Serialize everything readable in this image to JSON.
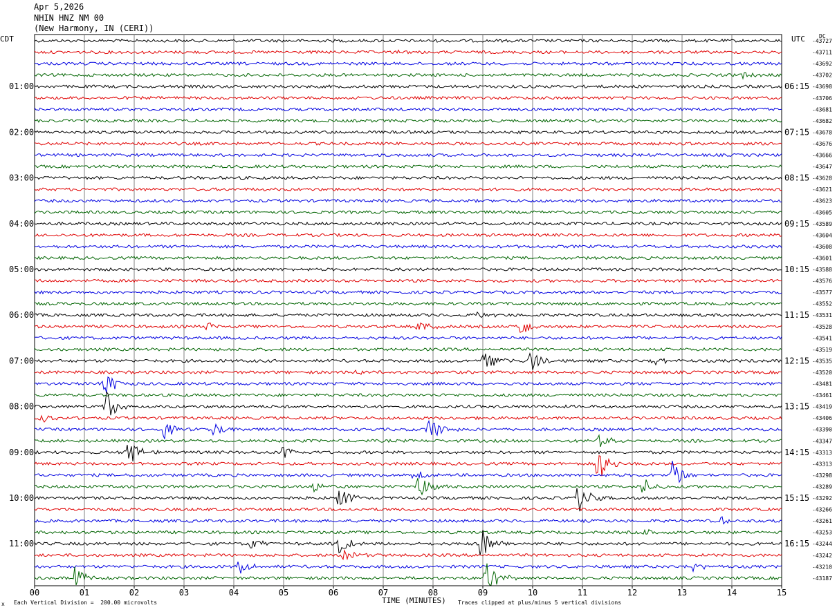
{
  "header": {
    "date": "Apr 5,2026",
    "station": "NHIN HNZ NM 00",
    "location": "(New Harmony, IN (CERI))"
  },
  "labels": {
    "left_tz": "CDT",
    "right_tz": "UTC",
    "dc": "DC",
    "xaxis_title": "TIME (MINUTES)",
    "scale_note": "Each Vertical Division =  200.00 microvolts",
    "clip_note": "Traces clipped at plus/minus 5 vertical divisions",
    "corner_mark": "x"
  },
  "colors": {
    "trace_cycle": [
      "#000000",
      "#e00000",
      "#0000e0",
      "#006400"
    ],
    "grid": "#808080"
  },
  "chart_data": {
    "type": "line",
    "title": "NHIN HNZ NM 00",
    "xlabel": "TIME (MINUTES)",
    "xlim": [
      0,
      15
    ],
    "x_ticks": [
      "00",
      "01",
      "02",
      "03",
      "04",
      "05",
      "06",
      "07",
      "08",
      "09",
      "10",
      "11",
      "12",
      "13",
      "14",
      "15"
    ],
    "left_hour_labels": [
      "01:00",
      "02:00",
      "03:00",
      "04:00",
      "05:00",
      "06:00",
      "07:00",
      "08:00",
      "09:00",
      "10:00",
      "11:00"
    ],
    "right_hour_labels": [
      "06:15",
      "07:15",
      "08:15",
      "09:15",
      "10:15",
      "11:15",
      "12:15",
      "13:15",
      "14:15",
      "15:15",
      "16:15"
    ],
    "dc_offsets": [
      "-43727",
      "-43711",
      "-43692",
      "-43702",
      "-43698",
      "-43706",
      "-43681",
      "-43682",
      "-43678",
      "-43676",
      "-43666",
      "-43647",
      "-43628",
      "-43621",
      "-43623",
      "-43605",
      "-43589",
      "-43604",
      "-43608",
      "-43601",
      "-43588",
      "-43576",
      "-43577",
      "-43552",
      "-43531",
      "-43528",
      "-43541",
      "-43519",
      "-43535",
      "-43520",
      "-43481",
      "-43461",
      "-43419",
      "-43406",
      "-43390",
      "-43347",
      "-43313",
      "-43313",
      "-43298",
      "-43289",
      "-43292",
      "-43266",
      "-43261",
      "-43253",
      "-43244",
      "-43242",
      "-43210",
      "-43187"
    ],
    "traces_count": 48,
    "events": [
      {
        "trace": 1,
        "minute": 7.3,
        "amp": 5
      },
      {
        "trace": 3,
        "minute": 14.2,
        "amp": 5
      },
      {
        "trace": 24,
        "minute": 8.9,
        "amp": 6
      },
      {
        "trace": 25,
        "minute": 3.4,
        "amp": 11
      },
      {
        "trace": 25,
        "minute": 7.7,
        "amp": 9
      },
      {
        "trace": 25,
        "minute": 9.75,
        "amp": 16
      },
      {
        "trace": 28,
        "minute": 9.0,
        "amp": 22
      },
      {
        "trace": 28,
        "minute": 9.95,
        "amp": 18
      },
      {
        "trace": 28,
        "minute": 12.4,
        "amp": 10
      },
      {
        "trace": 29,
        "minute": 6.4,
        "amp": 6
      },
      {
        "trace": 30,
        "minute": 1.4,
        "amp": 22
      },
      {
        "trace": 32,
        "minute": 1.4,
        "amp": 30
      },
      {
        "trace": 33,
        "minute": 0.1,
        "amp": 8
      },
      {
        "trace": 34,
        "minute": 2.6,
        "amp": 14
      },
      {
        "trace": 34,
        "minute": 3.6,
        "amp": 14
      },
      {
        "trace": 34,
        "minute": 7.9,
        "amp": 26
      },
      {
        "trace": 35,
        "minute": 11.3,
        "amp": 14
      },
      {
        "trace": 36,
        "minute": 1.85,
        "amp": 30
      },
      {
        "trace": 36,
        "minute": 5.0,
        "amp": 14
      },
      {
        "trace": 37,
        "minute": 11.3,
        "amp": 30
      },
      {
        "trace": 38,
        "minute": 7.6,
        "amp": 14
      },
      {
        "trace": 38,
        "minute": 12.8,
        "amp": 22
      },
      {
        "trace": 39,
        "minute": 5.6,
        "amp": 10
      },
      {
        "trace": 39,
        "minute": 7.7,
        "amp": 22
      },
      {
        "trace": 39,
        "minute": 12.2,
        "amp": 14
      },
      {
        "trace": 40,
        "minute": 6.1,
        "amp": 18
      },
      {
        "trace": 40,
        "minute": 10.9,
        "amp": 24
      },
      {
        "trace": 42,
        "minute": 13.8,
        "amp": 8
      },
      {
        "trace": 43,
        "minute": 12.2,
        "amp": 6
      },
      {
        "trace": 44,
        "minute": 4.3,
        "amp": 12
      },
      {
        "trace": 44,
        "minute": 6.1,
        "amp": 16
      },
      {
        "trace": 44,
        "minute": 8.95,
        "amp": 30
      },
      {
        "trace": 45,
        "minute": 6.2,
        "amp": 14
      },
      {
        "trace": 46,
        "minute": 4.1,
        "amp": 12
      },
      {
        "trace": 46,
        "minute": 13.2,
        "amp": 8
      },
      {
        "trace": 47,
        "minute": 0.8,
        "amp": 20
      },
      {
        "trace": 47,
        "minute": 9.05,
        "amp": 30
      }
    ]
  }
}
